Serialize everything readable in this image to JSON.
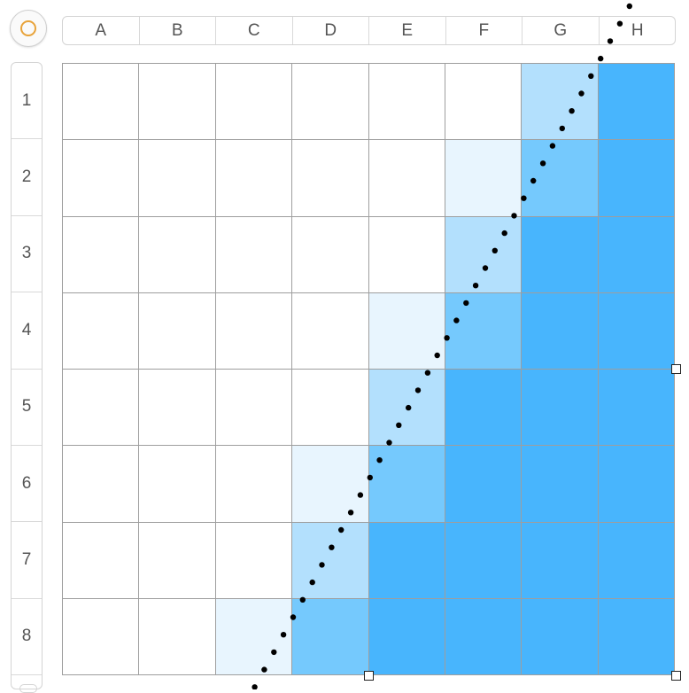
{
  "columns": [
    "A",
    "B",
    "C",
    "D",
    "E",
    "F",
    "G",
    "H"
  ],
  "rows": [
    "1",
    "2",
    "3",
    "4",
    "5",
    "6",
    "7",
    "8"
  ],
  "colors": {
    "empty": "#ffffff",
    "light": "#e8f5fe",
    "medium_light": "#b3e0fd",
    "medium": "#75c9fd",
    "full": "#48b5fd",
    "grid_line": "#9e9e9e",
    "dots": "#000000",
    "corner_ring": "#e8a33a"
  },
  "cell_fill_levels": [
    [
      0,
      0,
      0,
      0,
      0,
      0,
      2,
      4
    ],
    [
      0,
      0,
      0,
      0,
      0,
      1,
      3,
      4
    ],
    [
      0,
      0,
      0,
      0,
      0,
      2,
      4,
      4
    ],
    [
      0,
      0,
      0,
      0,
      1,
      3,
      4,
      4
    ],
    [
      0,
      0,
      0,
      0,
      2,
      4,
      4,
      4
    ],
    [
      0,
      0,
      0,
      1,
      3,
      4,
      4,
      4
    ],
    [
      0,
      0,
      0,
      2,
      4,
      4,
      4,
      4
    ],
    [
      0,
      0,
      1,
      3,
      4,
      4,
      4,
      4
    ]
  ],
  "fill_level_color_keys": [
    "empty",
    "light",
    "medium_light",
    "medium",
    "full"
  ],
  "boundary_line": {
    "style": "dotted",
    "top_crossing_col_fraction": 7.0,
    "bottom_crossing_col_fraction": 2.6
  },
  "corner_button_icon": "circle-outline-icon"
}
